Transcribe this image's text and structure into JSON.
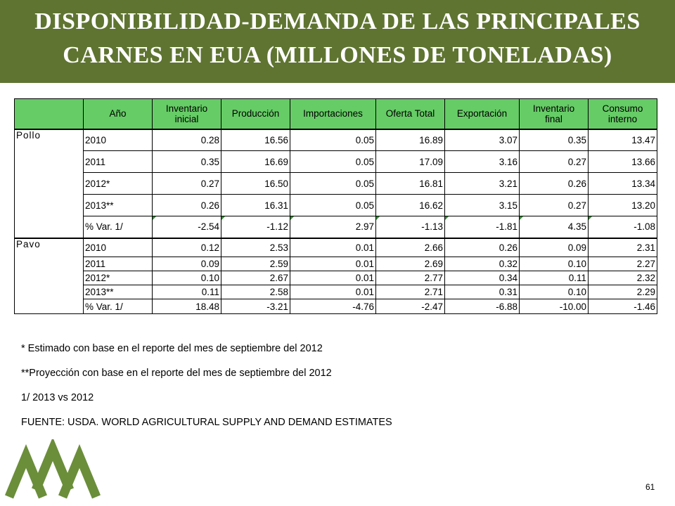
{
  "title": {
    "line1": "DISPONIBILIDAD-DEMANDA DE LAS PRINCIPALES",
    "line2": "CARNES EN EUA (MILLONES DE TONELADAS)"
  },
  "table": {
    "headers": {
      "col_year": "Año",
      "col_inv_ini_1": "Inventario",
      "col_inv_ini_2": "inicial",
      "col_prod": "Producción",
      "col_imp": "Importaciones",
      "col_oferta": "Oferta Total",
      "col_exp": "Exportación",
      "col_inv_fin_1": "Inventario",
      "col_inv_fin_2": "final",
      "col_cons_1": "Consumo",
      "col_cons_2": "interno"
    },
    "groups": [
      {
        "name": "Pollo",
        "rows": [
          [
            "2010",
            "0.28",
            "16.56",
            "0.05",
            "16.89",
            "3.07",
            "0.35",
            "13.47"
          ],
          [
            "2011",
            "0.35",
            "16.69",
            "0.05",
            "17.09",
            "3.16",
            "0.27",
            "13.66"
          ],
          [
            "2012*",
            "0.27",
            "16.50",
            "0.05",
            "16.81",
            "3.21",
            "0.26",
            "13.34"
          ],
          [
            "2013**",
            "0.26",
            "16.31",
            "0.05",
            "16.62",
            "3.15",
            "0.27",
            "13.20"
          ],
          [
            "% Var. 1/",
            "-2.54",
            "-1.12",
            "2.97",
            "-1.13",
            "-1.81",
            "4.35",
            "-1.08"
          ]
        ]
      },
      {
        "name": "Pavo",
        "rows": [
          [
            "2010",
            "0.12",
            "2.53",
            "0.01",
            "2.66",
            "0.26",
            "0.09",
            "2.31"
          ],
          [
            "2011",
            "0.09",
            "2.59",
            "0.01",
            "2.69",
            "0.32",
            "0.10",
            "2.27"
          ],
          [
            "2012*",
            "0.10",
            "2.67",
            "0.01",
            "2.77",
            "0.34",
            "0.11",
            "2.32"
          ],
          [
            "2013**",
            "0.11",
            "2.58",
            "0.01",
            "2.71",
            "0.31",
            "0.10",
            "2.29"
          ],
          [
            "% Var. 1/",
            "18.48",
            "-3.21",
            "-4.76",
            "-2.47",
            "-6.88",
            "-10.00",
            "-1.46"
          ]
        ]
      }
    ]
  },
  "notes": {
    "n1": "* Estimado con base en el reporte del mes de septiembre del 2012",
    "n2": "**Proyección con base en el reporte del mes de septiembre del 2012",
    "n3": "1/ 2013 vs 2012",
    "n4": "FUENTE: USDA. WORLD AGRICULTURAL SUPPLY AND DEMAND ESTIMATES"
  },
  "page_number": "61",
  "colors": {
    "banner": "#5f7431",
    "header_cells": "#66cc66",
    "logo": "#6b8e3a"
  },
  "logo_icon": "mountain-peaks-logo"
}
